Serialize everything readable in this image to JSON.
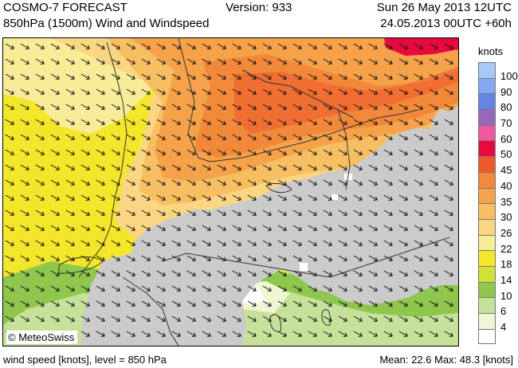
{
  "header": {
    "title": "COSMO-7 FORECAST",
    "subtitle": "850hPa (1500m) Wind and Windspeed",
    "version": "Version: 933",
    "valid_time": "Sun 26 May 2013 12UTC",
    "run_info": "24.05.2013 00UTC +60h"
  },
  "map": {
    "credit": "© MeteoSwiss",
    "wind_arrow_heading_deg": 120,
    "terrain_mask_color": "#cbcbcb"
  },
  "legend": {
    "unit": "knots",
    "classes": [
      {
        "label": "100",
        "color": "#a8c8f8"
      },
      {
        "label": "90",
        "color": "#86a8f0"
      },
      {
        "label": "80",
        "color": "#6484e8"
      },
      {
        "label": "70",
        "color": "#9868b8"
      },
      {
        "label": "60",
        "color": "#ee5aa0"
      },
      {
        "label": "50",
        "color": "#e80a3e"
      },
      {
        "label": "45",
        "color": "#ef5a2a"
      },
      {
        "label": "40",
        "color": "#f2883a"
      },
      {
        "label": "35",
        "color": "#f5a24a"
      },
      {
        "label": "30",
        "color": "#f8be62"
      },
      {
        "label": "26",
        "color": "#fad682"
      },
      {
        "label": "22",
        "color": "#f9ec98"
      },
      {
        "label": "18",
        "color": "#f4e62a"
      },
      {
        "label": "14",
        "color": "#d2e03a"
      },
      {
        "label": "10",
        "color": "#8ec64e"
      },
      {
        "label": "6",
        "color": "#c6e29a"
      },
      {
        "label": "4",
        "color": "#eef6d4"
      },
      {
        "label": "",
        "color": "#ffffff"
      }
    ]
  },
  "footer": {
    "left": "wind speed [knots], level = 850 hPa",
    "right": "Mean:   22.6 Max:   48.3 [knots]"
  }
}
